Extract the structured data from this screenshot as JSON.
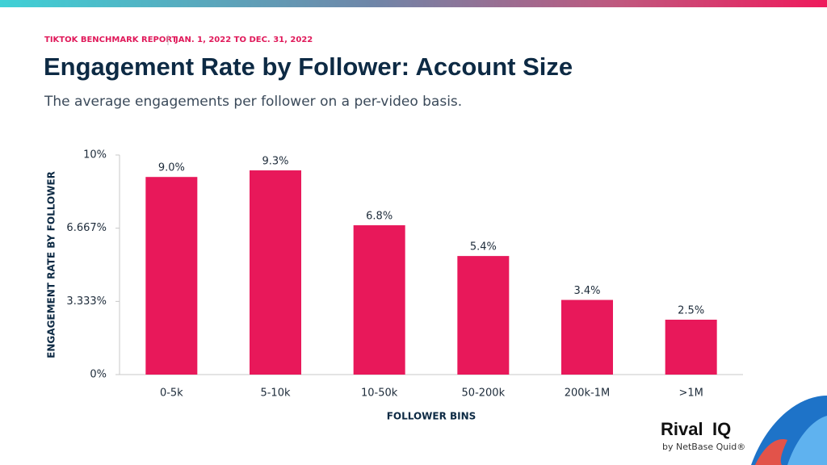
{
  "header": {
    "report": "TIKTOK BENCHMARK REPORT",
    "date_range": "JAN. 1, 2022 TO DEC. 31, 2022"
  },
  "logo": {
    "name": "Rival",
    "name_bold": "IQ",
    "byline": "by NetBase Quid®"
  },
  "chart_data": {
    "type": "bar",
    "title": "Engagement Rate by Follower: Account Size",
    "subtitle": "The average engagements per follower on a per-video basis.",
    "x_label": "FOLLOWER BINS",
    "y_label": "ENGAGEMENT RATE BY FOLLOWER",
    "categories": [
      "0-5k",
      "5-10k",
      "10-50k",
      "50-200k",
      "200k-1M",
      ">1M"
    ],
    "values": [
      9.0,
      9.3,
      6.8,
      5.4,
      3.4,
      2.5
    ],
    "value_labels": [
      "9.0%",
      "9.3%",
      "6.8%",
      "5.4%",
      "3.4%",
      "2.5%"
    ],
    "color": "#e8185a",
    "ylim": [
      0,
      10
    ],
    "yticks": [
      {
        "value": 0,
        "label": "0%"
      },
      {
        "value": 3.333,
        "label": "3.333%"
      },
      {
        "value": 6.667,
        "label": "6.667%"
      },
      {
        "value": 10,
        "label": "10%"
      }
    ],
    "grid": false
  }
}
